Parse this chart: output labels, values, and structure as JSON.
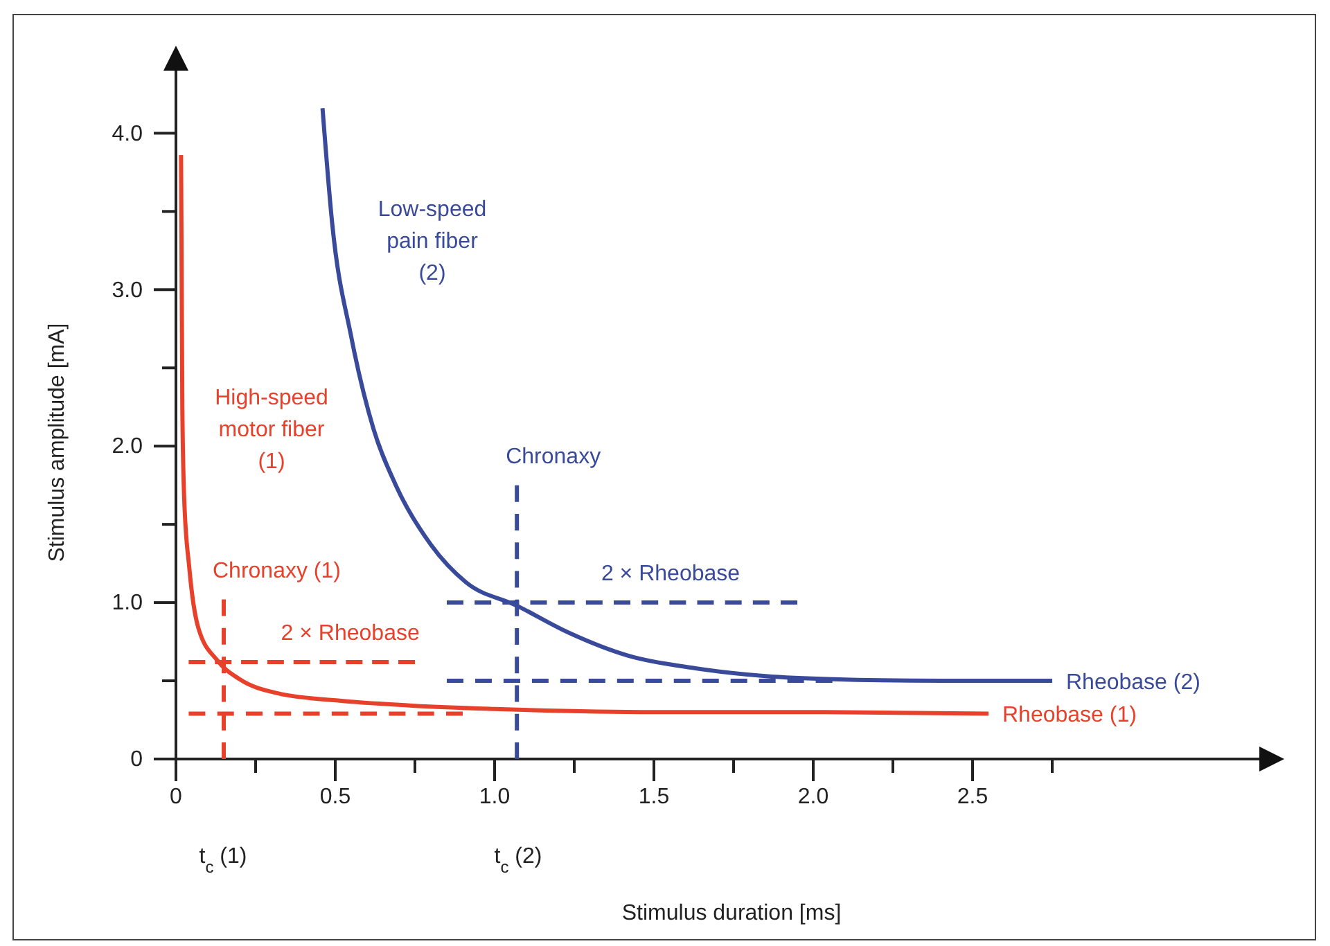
{
  "chart_data": {
    "type": "line",
    "xlabel": "Stimulus duration [ms]",
    "ylabel": "Stimulus amplitude [mA]",
    "xlim": [
      0,
      3.4
    ],
    "ylim": [
      0,
      4.4
    ],
    "xticks": [
      0,
      {
        "value": 0.25,
        "label": null
      },
      0.5,
      {
        "value": 0.75,
        "label": null
      },
      {
        "value": 1,
        "label": "1.0"
      },
      {
        "value": 1.25,
        "label": null
      },
      1.5,
      {
        "value": 1.75,
        "label": null
      },
      {
        "value": 2,
        "label": "2.0"
      },
      {
        "value": 2.25,
        "label": null
      },
      2.5,
      {
        "value": 2.75,
        "label": null
      }
    ],
    "yticks": [
      0,
      {
        "value": 0.5,
        "label": null
      },
      {
        "value": 1,
        "label": "1.0"
      },
      {
        "value": 1.5,
        "label": null
      },
      {
        "value": 2,
        "label": "2.0"
      },
      {
        "value": 2.5,
        "label": null
      },
      {
        "value": 3,
        "label": "3.0"
      },
      {
        "value": 3.5,
        "label": null
      },
      {
        "value": 4,
        "label": "4.0"
      }
    ],
    "series": [
      {
        "name": "Rheobase (1)",
        "color": "#e8412b",
        "line_style": "solid",
        "x": [
          0.016,
          0.02,
          0.026,
          0.042,
          0.07,
          0.13,
          0.2,
          0.32,
          0.53,
          0.75,
          1.0,
          1.5,
          2.0,
          2.55
        ],
        "values": [
          3.86,
          2.26,
          1.66,
          1.22,
          0.84,
          0.63,
          0.51,
          0.42,
          0.37,
          0.34,
          0.32,
          0.3,
          0.3,
          0.29
        ]
      },
      {
        "name": "Rheobase (2)",
        "color": "#3a4a9a",
        "line_style": "solid",
        "x": [
          0.46,
          0.49,
          0.55,
          0.62,
          0.69,
          0.8,
          0.91,
          1.07,
          1.23,
          1.42,
          1.63,
          1.85,
          2.06,
          2.4,
          2.75
        ],
        "values": [
          4.16,
          3.43,
          2.7,
          2.11,
          1.75,
          1.37,
          1.13,
          0.98,
          0.81,
          0.66,
          0.58,
          0.53,
          0.51,
          0.5,
          0.5
        ]
      },
      {
        "name": "Chronaxy (1)",
        "color": "#e8412b",
        "line_style": "dashed",
        "x": [
          0.15,
          0.15
        ],
        "values": [
          0,
          1.02
        ]
      },
      {
        "name": "2 × Rheobase",
        "color": "#e8412b",
        "line_style": "dashed",
        "x": [
          0.04,
          0.75
        ],
        "values": [
          0.62,
          0.62
        ]
      },
      {
        "color": "#e8412b",
        "line_style": "dashed",
        "x": [
          0.04,
          0.9
        ],
        "values": [
          0.29,
          0.29
        ]
      },
      {
        "name": "Chronaxy",
        "color": "#3a4a9a",
        "line_style": "dashed",
        "x": [
          1.07,
          1.07
        ],
        "values": [
          0,
          1.75
        ]
      },
      {
        "name": "2 × Rheobase",
        "color": "#3a4a9a",
        "line_style": "dashed",
        "x": [
          0.85,
          1.95
        ],
        "values": [
          1.0,
          1.0
        ]
      },
      {
        "color": "#3a4a9a",
        "line_style": "dashed",
        "x": [
          0.85,
          2.06
        ],
        "values": [
          0.5,
          0.5
        ]
      }
    ],
    "annotations": [
      "High-speed\nmotor fiber\n(1)",
      "Low-speed\npain fiber\n(2)",
      "t$_{c}$ (1)",
      "t$_{c}$ (2)"
    ]
  }
}
